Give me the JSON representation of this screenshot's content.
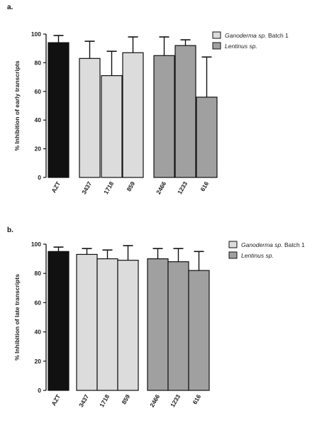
{
  "colors": {
    "azt": "#111111",
    "ganoderma": "#dcdcdc",
    "lentinus": "#a0a0a0",
    "axis": "#111111"
  },
  "chart_data": [
    {
      "panel_label": "a.",
      "type": "bar",
      "ylabel": "% Inhibition of early transcripts",
      "ylim": [
        0,
        100
      ],
      "yticks": [
        "0",
        "20",
        "40",
        "60",
        "80",
        "100"
      ],
      "legend": {
        "placement": "top-right",
        "entries": [
          {
            "name_italic": "Ganoderma sp.",
            "name_rest": " Batch 1",
            "color_key": "ganoderma"
          },
          {
            "name_italic": "Lentinus sp.",
            "name_rest": "",
            "color_key": "lentinus"
          }
        ]
      },
      "bars": [
        {
          "category": "AZT",
          "value": 94,
          "error": 5,
          "group": "azt"
        },
        {
          "category": "3437",
          "value": 83,
          "error": 12,
          "group": "ganoderma"
        },
        {
          "category": "1718",
          "value": 71,
          "error": 17,
          "group": "ganoderma"
        },
        {
          "category": "859",
          "value": 87,
          "error": 11,
          "group": "ganoderma"
        },
        {
          "category": "2466",
          "value": 85,
          "error": 13,
          "group": "lentinus"
        },
        {
          "category": "1233",
          "value": 92,
          "error": 4,
          "group": "lentinus"
        },
        {
          "category": "616",
          "value": 56,
          "error": 28,
          "group": "lentinus"
        }
      ]
    },
    {
      "panel_label": "b.",
      "type": "bar",
      "ylabel": "% Inhibition of late transcripts",
      "ylim": [
        0,
        100
      ],
      "yticks": [
        "0",
        "20",
        "40",
        "60",
        "80",
        "100"
      ],
      "legend": {
        "placement": "top-right",
        "entries": [
          {
            "name_italic": "Ganoderma sp.",
            "name_rest": " Batch 1",
            "color_key": "ganoderma"
          },
          {
            "name_italic": "Lentinus sp.",
            "name_rest": "",
            "color_key": "lentinus"
          }
        ]
      },
      "bars": [
        {
          "category": "AZT",
          "value": 95,
          "error": 3,
          "group": "azt"
        },
        {
          "category": "3437",
          "value": 93,
          "error": 4,
          "group": "ganoderma"
        },
        {
          "category": "1718",
          "value": 90,
          "error": 6,
          "group": "ganoderma"
        },
        {
          "category": "859",
          "value": 89,
          "error": 10,
          "group": "ganoderma"
        },
        {
          "category": "2466",
          "value": 90,
          "error": 7,
          "group": "lentinus"
        },
        {
          "category": "1233",
          "value": 88,
          "error": 9,
          "group": "lentinus"
        },
        {
          "category": "616",
          "value": 82,
          "error": 13,
          "group": "lentinus"
        }
      ]
    }
  ]
}
